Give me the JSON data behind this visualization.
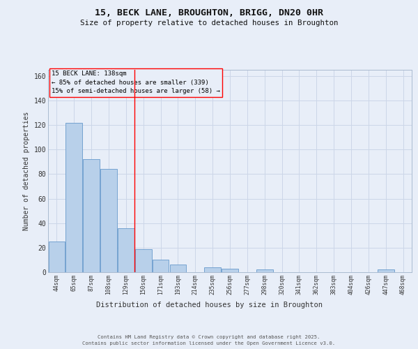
{
  "title1": "15, BECK LANE, BROUGHTON, BRIGG, DN20 0HR",
  "title2": "Size of property relative to detached houses in Broughton",
  "xlabel": "Distribution of detached houses by size in Broughton",
  "ylabel": "Number of detached properties",
  "categories": [
    "44sqm",
    "65sqm",
    "87sqm",
    "108sqm",
    "129sqm",
    "150sqm",
    "171sqm",
    "193sqm",
    "214sqm",
    "235sqm",
    "256sqm",
    "277sqm",
    "298sqm",
    "320sqm",
    "341sqm",
    "362sqm",
    "383sqm",
    "404sqm",
    "426sqm",
    "447sqm",
    "468sqm"
  ],
  "values": [
    25,
    122,
    92,
    84,
    36,
    19,
    10,
    6,
    0,
    4,
    3,
    0,
    2,
    0,
    0,
    0,
    0,
    0,
    0,
    2,
    0
  ],
  "bar_color": "#b8d0ea",
  "bar_edge_color": "#6699cc",
  "grid_color": "#ccd6e8",
  "background_color": "#e8eef8",
  "red_line_x": 4.5,
  "annotation_title": "15 BECK LANE: 138sqm",
  "annotation_line1": "← 85% of detached houses are smaller (339)",
  "annotation_line2": "15% of semi-detached houses are larger (58) →",
  "footer1": "Contains HM Land Registry data © Crown copyright and database right 2025.",
  "footer2": "Contains public sector information licensed under the Open Government Licence v3.0.",
  "ylim": [
    0,
    165
  ],
  "yticks": [
    0,
    20,
    40,
    60,
    80,
    100,
    120,
    140,
    160
  ]
}
